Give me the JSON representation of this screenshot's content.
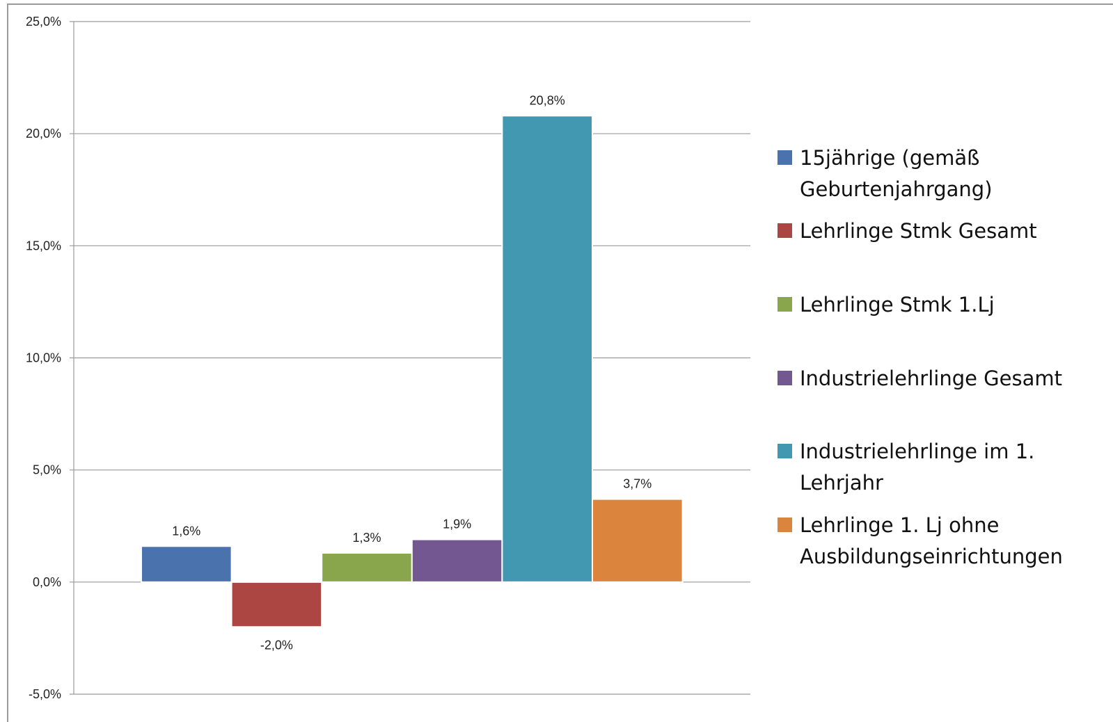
{
  "chart_data": {
    "type": "bar",
    "ylim": [
      -5,
      25
    ],
    "yticks": [
      -5,
      0,
      5,
      10,
      15,
      20,
      25
    ],
    "ytick_labels": [
      "-5,0%",
      "0,0%",
      "5,0%",
      "10,0%",
      "15,0%",
      "20,0%",
      "25,0%"
    ],
    "grid": true,
    "legend_position": "right",
    "series": [
      {
        "name": "15jährige (gemäß Geburtenjahrgang)",
        "value": 1.6,
        "label": "1,6%",
        "color": "#4a72ad"
      },
      {
        "name": "Lehrlinge Stmk Gesamt",
        "value": -2.0,
        "label": "-2,0%",
        "color": "#ac4642"
      },
      {
        "name": "Lehrlinge Stmk 1.Lj",
        "value": 1.3,
        "label": "1,3%",
        "color": "#89a64c"
      },
      {
        "name": "Industrielehrlinge Gesamt",
        "value": 1.9,
        "label": "1,9%",
        "color": "#735790"
      },
      {
        "name": "Industrielehrlinge im 1. Lehrjahr",
        "value": 20.8,
        "label": "20,8%",
        "color": "#4298b0"
      },
      {
        "name": "Lehrlinge 1. Lj ohne Ausbildungseinrichtungen",
        "value": 3.7,
        "label": "3,7%",
        "color": "#db843d"
      }
    ]
  }
}
